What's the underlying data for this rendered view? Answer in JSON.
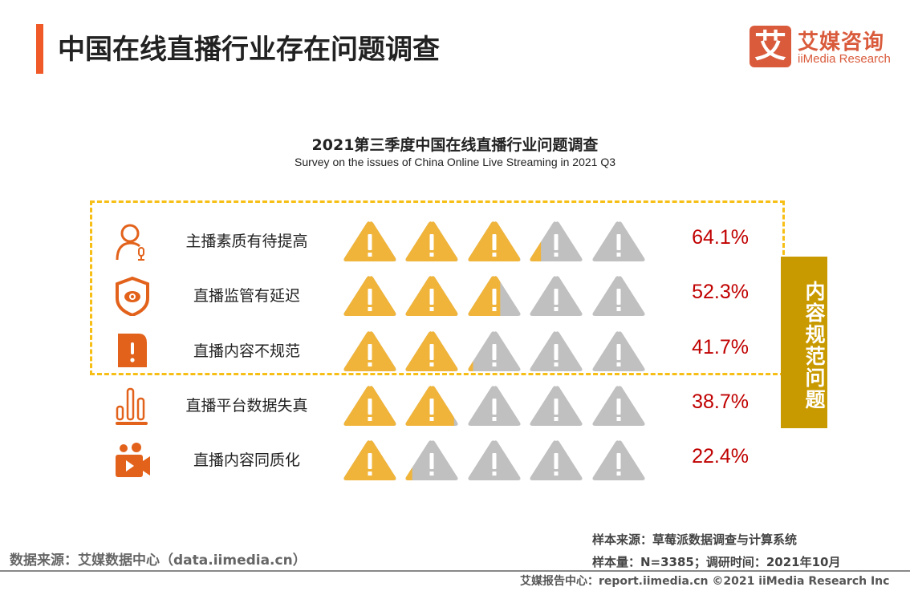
{
  "header": {
    "title": "中国在线直播行业存在问题调查",
    "accent": "#f05a28"
  },
  "logo": {
    "mark": "艾",
    "name_cn": "艾媒咨询",
    "name_en": "iiMedia Research"
  },
  "chart_data": {
    "type": "pictograph",
    "title": "2021第三季度中国在线直播行业问题调查",
    "subtitle": "Survey on the issues of China Online Live Streaming in 2021 Q3",
    "icon_unit_percent": 20,
    "icons_per_row": 5,
    "fill_color": "#f0b43a",
    "empty_color": "#c0c0c0",
    "categories": [
      "主播素质有待提高",
      "直播监管有延迟",
      "直播内容不规范",
      "直播平台数据失真",
      "直播内容同质化"
    ],
    "category_icons": [
      "person-mic-icon",
      "shield-eye-icon",
      "alert-doc-icon",
      "bar-chart-icon",
      "video-camera-icon"
    ],
    "values": [
      64.1,
      52.3,
      41.7,
      38.7,
      22.4
    ],
    "value_labels": [
      "64.1%",
      "52.3%",
      "41.7%",
      "38.7%",
      "22.4%"
    ],
    "group_label": "内容规范问题",
    "group_color": "#c99a00"
  },
  "footer": {
    "data_source": "数据来源：艾媒数据中心（data.iimedia.cn）",
    "sample_source": "样本来源：草莓派数据调查与计算系统",
    "sample_info": "样本量：N=3385；调研时间：2021年10月",
    "copyright": "艾媒报告中心：report.iimedia.cn  ©2021  iiMedia Research  Inc"
  }
}
